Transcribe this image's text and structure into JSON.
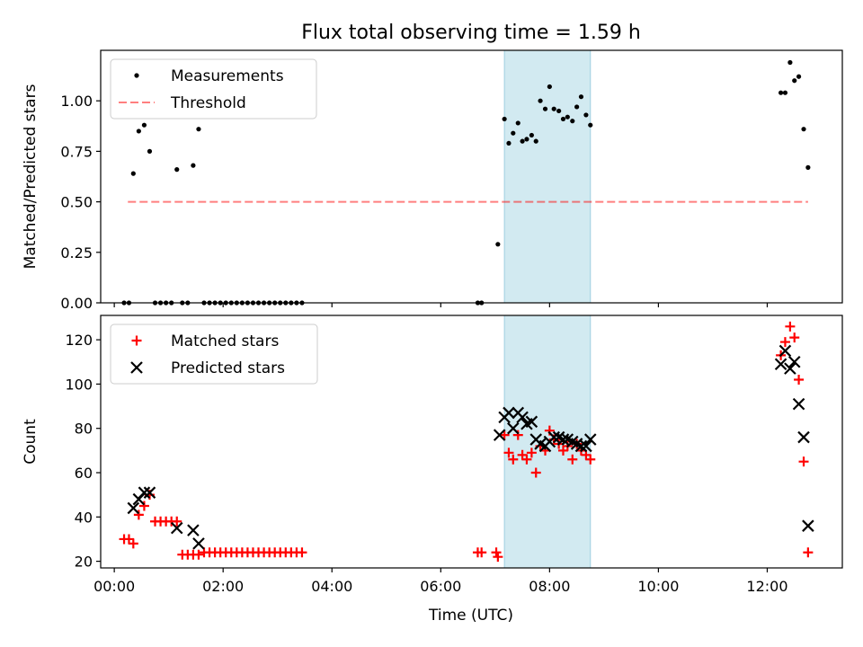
{
  "chart_data": {
    "title": "Flux total observing time = 1.59 h",
    "xlabel": "Time (UTC)",
    "xlim_hours": [
      -0.25,
      13.38
    ],
    "xticks": [
      {
        "value": 0,
        "label": "00:00"
      },
      {
        "value": 2,
        "label": "02:00"
      },
      {
        "value": 4,
        "label": "04:00"
      },
      {
        "value": 6,
        "label": "06:00"
      },
      {
        "value": 8,
        "label": "08:00"
      },
      {
        "value": 10,
        "label": "10:00"
      },
      {
        "value": 12,
        "label": "12:00"
      }
    ],
    "shaded_interval_hours": [
      7.17,
      8.75
    ],
    "shade_color": "#add8e6",
    "panels": [
      {
        "type": "scatter",
        "ylabel": "Matched/Predicted stars",
        "ylim": [
          0,
          1.25
        ],
        "yticks": [
          {
            "value": 0,
            "label": "0.00"
          },
          {
            "value": 0.25,
            "label": "0.25"
          },
          {
            "value": 0.5,
            "label": "0.50"
          },
          {
            "value": 0.75,
            "label": "0.75"
          },
          {
            "value": 1.0,
            "label": "1.00"
          }
        ],
        "legend": {
          "position": "upper-left",
          "entries": [
            "Measurements",
            "Threshold"
          ]
        },
        "series": [
          {
            "name": "Measurements",
            "marker": "dot",
            "color": "#000000",
            "points": [
              [
                0.18,
                0
              ],
              [
                0.27,
                0
              ],
              [
                0.35,
                0.64
              ],
              [
                0.45,
                0.85
              ],
              [
                0.55,
                0.88
              ],
              [
                0.65,
                0.75
              ],
              [
                0.75,
                0
              ],
              [
                0.85,
                0
              ],
              [
                0.95,
                0
              ],
              [
                1.05,
                0
              ],
              [
                1.15,
                0.66
              ],
              [
                1.25,
                0
              ],
              [
                1.35,
                0
              ],
              [
                1.45,
                0.68
              ],
              [
                1.55,
                0.86
              ],
              [
                1.65,
                0
              ],
              [
                1.75,
                0
              ],
              [
                1.85,
                0
              ],
              [
                1.95,
                0
              ],
              [
                2.05,
                0
              ],
              [
                2.15,
                0
              ],
              [
                2.25,
                0
              ],
              [
                2.35,
                0
              ],
              [
                2.45,
                0
              ],
              [
                2.55,
                0
              ],
              [
                2.65,
                0
              ],
              [
                2.75,
                0
              ],
              [
                2.85,
                0
              ],
              [
                2.95,
                0
              ],
              [
                3.05,
                0
              ],
              [
                3.15,
                0
              ],
              [
                3.25,
                0
              ],
              [
                3.35,
                0
              ],
              [
                3.45,
                0
              ],
              [
                6.68,
                0
              ],
              [
                6.75,
                0
              ],
              [
                7.05,
                0.29
              ],
              [
                7.17,
                0.91
              ],
              [
                7.25,
                0.79
              ],
              [
                7.33,
                0.84
              ],
              [
                7.42,
                0.89
              ],
              [
                7.5,
                0.8
              ],
              [
                7.58,
                0.81
              ],
              [
                7.67,
                0.83
              ],
              [
                7.75,
                0.8
              ],
              [
                7.83,
                1.0
              ],
              [
                7.92,
                0.96
              ],
              [
                8.0,
                1.07
              ],
              [
                8.08,
                0.96
              ],
              [
                8.17,
                0.95
              ],
              [
                8.25,
                0.91
              ],
              [
                8.33,
                0.92
              ],
              [
                8.42,
                0.9
              ],
              [
                8.5,
                0.97
              ],
              [
                8.58,
                1.02
              ],
              [
                8.67,
                0.93
              ],
              [
                8.75,
                0.88
              ],
              [
                12.25,
                1.04
              ],
              [
                12.33,
                1.04
              ],
              [
                12.42,
                1.19
              ],
              [
                12.5,
                1.1
              ],
              [
                12.58,
                1.12
              ],
              [
                12.67,
                0.86
              ],
              [
                12.75,
                0.67
              ]
            ]
          },
          {
            "name": "Threshold",
            "type": "line",
            "style": "dashed",
            "color": "#ff0000",
            "opacity": 0.5,
            "points": [
              [
                0.25,
                0.5
              ],
              [
                12.75,
                0.5
              ]
            ]
          }
        ]
      },
      {
        "type": "scatter",
        "ylabel": "Count",
        "ylim": [
          17,
          131
        ],
        "yticks": [
          {
            "value": 20,
            "label": "20"
          },
          {
            "value": 40,
            "label": "40"
          },
          {
            "value": 60,
            "label": "60"
          },
          {
            "value": 80,
            "label": "80"
          },
          {
            "value": 100,
            "label": "100"
          },
          {
            "value": 120,
            "label": "120"
          }
        ],
        "legend": {
          "position": "upper-left",
          "entries": [
            "Matched stars",
            "Predicted stars"
          ]
        },
        "series": [
          {
            "name": "Matched stars",
            "marker": "plus",
            "color": "#ff0000",
            "points": [
              [
                0.18,
                30
              ],
              [
                0.27,
                30
              ],
              [
                0.35,
                28
              ],
              [
                0.45,
                41
              ],
              [
                0.55,
                45
              ],
              [
                0.65,
                50
              ],
              [
                0.75,
                38
              ],
              [
                0.85,
                38
              ],
              [
                0.95,
                38
              ],
              [
                1.05,
                38
              ],
              [
                1.15,
                38
              ],
              [
                1.25,
                23
              ],
              [
                1.35,
                23
              ],
              [
                1.45,
                23
              ],
              [
                1.55,
                23
              ],
              [
                1.65,
                24
              ],
              [
                1.75,
                24
              ],
              [
                1.85,
                24
              ],
              [
                1.95,
                24
              ],
              [
                2.05,
                24
              ],
              [
                2.15,
                24
              ],
              [
                2.25,
                24
              ],
              [
                2.35,
                24
              ],
              [
                2.45,
                24
              ],
              [
                2.55,
                24
              ],
              [
                2.65,
                24
              ],
              [
                2.75,
                24
              ],
              [
                2.85,
                24
              ],
              [
                2.95,
                24
              ],
              [
                3.05,
                24
              ],
              [
                3.15,
                24
              ],
              [
                3.25,
                24
              ],
              [
                3.35,
                24
              ],
              [
                3.45,
                24
              ],
              [
                6.68,
                24
              ],
              [
                6.75,
                24
              ],
              [
                7.02,
                24
              ],
              [
                7.05,
                22
              ],
              [
                7.17,
                77
              ],
              [
                7.25,
                69
              ],
              [
                7.33,
                66
              ],
              [
                7.42,
                77
              ],
              [
                7.5,
                68
              ],
              [
                7.58,
                66
              ],
              [
                7.67,
                69
              ],
              [
                7.75,
                60
              ],
              [
                7.83,
                72
              ],
              [
                7.92,
                70
              ],
              [
                8.0,
                79
              ],
              [
                8.08,
                75
              ],
              [
                8.17,
                73
              ],
              [
                8.25,
                70
              ],
              [
                8.33,
                72
              ],
              [
                8.42,
                66
              ],
              [
                8.5,
                73
              ],
              [
                8.58,
                70
              ],
              [
                8.67,
                68
              ],
              [
                8.75,
                66
              ],
              [
                12.25,
                113
              ],
              [
                12.33,
                119
              ],
              [
                12.42,
                126
              ],
              [
                12.5,
                121
              ],
              [
                12.58,
                102
              ],
              [
                12.67,
                65
              ],
              [
                12.75,
                24
              ]
            ]
          },
          {
            "name": "Predicted stars",
            "marker": "x",
            "color": "#000000",
            "points": [
              [
                0.35,
                44
              ],
              [
                0.45,
                48
              ],
              [
                0.55,
                51
              ],
              [
                0.65,
                51
              ],
              [
                1.15,
                35
              ],
              [
                1.45,
                34
              ],
              [
                1.55,
                28
              ],
              [
                7.08,
                77
              ],
              [
                7.17,
                85
              ],
              [
                7.25,
                87
              ],
              [
                7.33,
                80
              ],
              [
                7.42,
                87
              ],
              [
                7.5,
                85
              ],
              [
                7.58,
                82
              ],
              [
                7.67,
                83
              ],
              [
                7.75,
                75
              ],
              [
                7.83,
                73
              ],
              [
                7.92,
                72
              ],
              [
                8.0,
                74
              ],
              [
                8.08,
                76
              ],
              [
                8.17,
                76
              ],
              [
                8.25,
                75
              ],
              [
                8.33,
                75
              ],
              [
                8.42,
                74
              ],
              [
                8.5,
                73
              ],
              [
                8.58,
                72
              ],
              [
                8.67,
                72
              ],
              [
                8.75,
                75
              ],
              [
                12.25,
                109
              ],
              [
                12.33,
                115
              ],
              [
                12.42,
                107
              ],
              [
                12.5,
                110
              ],
              [
                12.58,
                91
              ],
              [
                12.67,
                76
              ],
              [
                12.75,
                36
              ]
            ]
          }
        ]
      }
    ]
  }
}
